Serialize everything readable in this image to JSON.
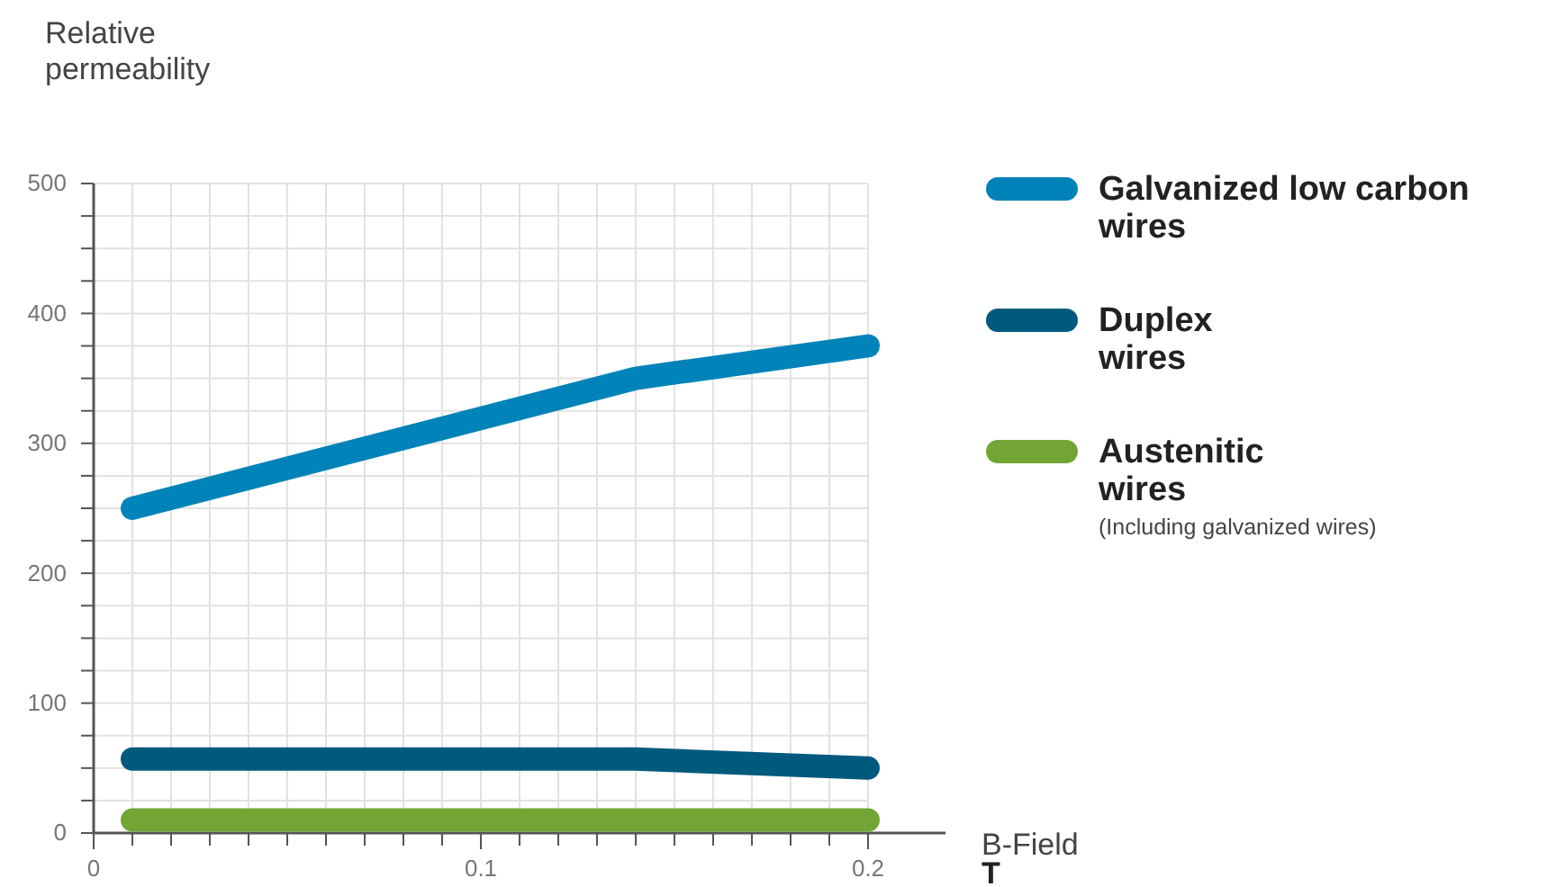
{
  "chart_data": {
    "type": "line",
    "ylabel": "Relative permeability",
    "xlabel": "B-Field\nT",
    "xlim": [
      0,
      0.22
    ],
    "ylim": [
      0,
      500
    ],
    "xticks": [
      0,
      {
        "value": 0.01,
        "label": null
      },
      {
        "value": 0.02,
        "label": null
      },
      {
        "value": 0.03,
        "label": null
      },
      {
        "value": 0.04,
        "label": null
      },
      {
        "value": 0.05,
        "label": null
      },
      {
        "value": 0.06,
        "label": null
      },
      {
        "value": 0.07,
        "label": null
      },
      {
        "value": 0.08,
        "label": null
      },
      {
        "value": 0.09,
        "label": null
      },
      0.1,
      {
        "value": 0.11,
        "label": null
      },
      {
        "value": 0.12,
        "label": null
      },
      {
        "value": 0.13,
        "label": null
      },
      {
        "value": 0.14,
        "label": null
      },
      {
        "value": 0.15,
        "label": null
      },
      {
        "value": 0.16,
        "label": null
      },
      {
        "value": 0.17,
        "label": null
      },
      {
        "value": 0.18,
        "label": null
      },
      {
        "value": 0.19,
        "label": null
      },
      0.2
    ],
    "yticks": [
      0,
      {
        "value": 25,
        "label": null
      },
      {
        "value": 50,
        "label": null
      },
      {
        "value": 75,
        "label": null
      },
      100,
      {
        "value": 125,
        "label": null
      },
      {
        "value": 150,
        "label": null
      },
      {
        "value": 175,
        "label": null
      },
      200,
      {
        "value": 225,
        "label": null
      },
      {
        "value": 250,
        "label": null
      },
      {
        "value": 275,
        "label": null
      },
      300,
      {
        "value": 325,
        "label": null
      },
      {
        "value": 350,
        "label": null
      },
      {
        "value": 375,
        "label": null
      },
      400,
      {
        "value": 425,
        "label": null
      },
      {
        "value": 450,
        "label": null
      },
      {
        "value": 475,
        "label": null
      },
      500
    ],
    "grid": true,
    "legend": "right",
    "marker": "none",
    "line_style": "solid",
    "series": [
      {
        "name": "Galvanized low carbon wires",
        "color": "#0083b8",
        "x": [
          0.01,
          0.14,
          0.2
        ],
        "values": [
          250,
          350,
          375
        ]
      },
      {
        "name": "Duplex wires",
        "color": "#005a7d",
        "x": [
          0.01,
          0.14,
          0.2
        ],
        "values": [
          57,
          57,
          50
        ]
      },
      {
        "name": "Austenitic wires",
        "color": "#72a534",
        "x": [
          0.01,
          0.2
        ],
        "values": [
          10,
          10
        ]
      }
    ],
    "annotations": [
      "(Including galvanized wires)"
    ]
  }
}
